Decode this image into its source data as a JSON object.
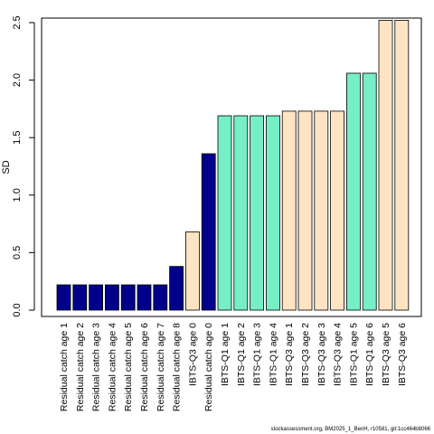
{
  "chart_data": {
    "type": "bar",
    "ylabel": "SD",
    "ylim": [
      0,
      2.5
    ],
    "yticks": [
      "0.0",
      "0.5",
      "1.0",
      "1.5",
      "2.0",
      "2.5"
    ],
    "grid": false,
    "categories": [
      "Residual catch age 1",
      "Residual catch age 2",
      "Residual catch age 3",
      "Residual catch age 4",
      "Residual catch age 5",
      "Residual catch age 6",
      "Residual catch age 7",
      "Residual catch age 8",
      "IBTS-Q3 age 0",
      "Residual catch age 0",
      "IBTS-Q1 age 1",
      "IBTS-Q1 age 2",
      "IBTS-Q1 age 3",
      "IBTS-Q1 age 4",
      "IBTS-Q3 age 1",
      "IBTS-Q3 age 2",
      "IBTS-Q3 age 3",
      "IBTS-Q3 age 4",
      "IBTS-Q1 age 5",
      "IBTS-Q1 age 6",
      "IBTS-Q3 age 5",
      "IBTS-Q3 age 6"
    ],
    "values": [
      0.22,
      0.22,
      0.22,
      0.22,
      0.22,
      0.22,
      0.22,
      0.38,
      0.68,
      1.36,
      1.69,
      1.69,
      1.69,
      1.69,
      1.73,
      1.73,
      1.73,
      1.73,
      2.06,
      2.06,
      2.52,
      2.52
    ],
    "colors": [
      "#00008B",
      "#00008B",
      "#00008B",
      "#00008B",
      "#00008B",
      "#00008B",
      "#00008B",
      "#00008B",
      "#FFE4C4",
      "#00008B",
      "#76EEC6",
      "#76EEC6",
      "#76EEC6",
      "#76EEC6",
      "#FFE4C4",
      "#FFE4C4",
      "#FFE4C4",
      "#FFE4C4",
      "#76EEC6",
      "#76EEC6",
      "#FFE4C4",
      "#FFE4C4"
    ]
  },
  "footer": "stockassessment.org, BM2025_1_BenH, r10581, git:1cc464b8066"
}
